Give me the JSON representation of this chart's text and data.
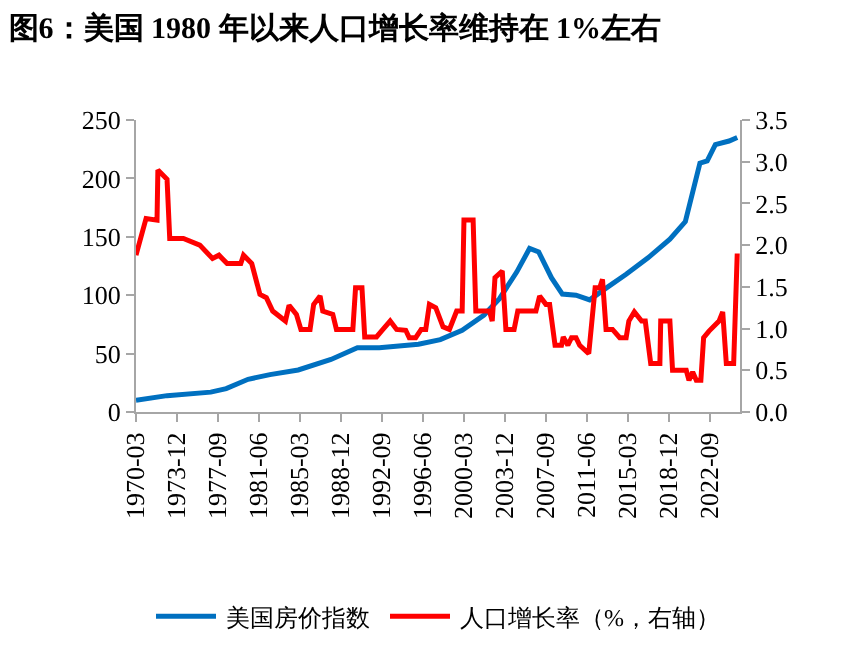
{
  "chart_data": {
    "type": "line",
    "title": "图6：美国 1980 年以来人口增长率维持在 1%左右",
    "xlim": [
      "1970-03",
      "2025-06"
    ],
    "xticks": [
      "1970-03",
      "1973-12",
      "1977-09",
      "1981-06",
      "1985-03",
      "1988-12",
      "1992-09",
      "1996-06",
      "2000-03",
      "2003-12",
      "2007-09",
      "2011-06",
      "2015-03",
      "2018-12",
      "2022-09"
    ],
    "ylim": [
      0,
      250
    ],
    "yticks": [
      0,
      50,
      100,
      150,
      200,
      250
    ],
    "y2lim": [
      0,
      3.5
    ],
    "y2ticks": [
      {
        "value": 0,
        "label": "0.0"
      },
      {
        "value": 0.5,
        "label": "0.5"
      },
      {
        "value": 1,
        "label": "1.0"
      },
      {
        "value": 1.5,
        "label": "1.5"
      },
      {
        "value": 2,
        "label": "2.0"
      },
      {
        "value": 2.5,
        "label": "2.5"
      },
      {
        "value": 3,
        "label": "3.0"
      },
      {
        "value": 3.5,
        "label": "3.5"
      }
    ],
    "legend": "bottom",
    "series": [
      {
        "name": "美国房价指数",
        "color": "#0070c0",
        "x": [
          "1970-03",
          "1973-01",
          "1977-01",
          "1978-06",
          "1980-06",
          "1982-06",
          "1985-01",
          "1988-01",
          "1990-06",
          "1992-06",
          "1996-01",
          "1998-01",
          "2000-01",
          "2002-01",
          "2003-06",
          "2005-01",
          "2006-03",
          "2007-01",
          "2008-03",
          "2009-03",
          "2010-06",
          "2011-09",
          "2013-01",
          "2015-01",
          "2017-01",
          "2019-01",
          "2020-06",
          "2021-10",
          "2022-06",
          "2023-03",
          "2024-06",
          "2025-03"
        ],
        "values": [
          10,
          14,
          17,
          20,
          28,
          32,
          36,
          45,
          55,
          55,
          58,
          62,
          70,
          83,
          97,
          120,
          140,
          137,
          115,
          101,
          100,
          96,
          105,
          118,
          132,
          148,
          163,
          213,
          215,
          229,
          232,
          235
        ]
      },
      {
        "name": "人口增长率（%，右轴）",
        "color": "#ff0000",
        "axis": "y2",
        "x": [
          "1970-03",
          "1971-02",
          "1972-02",
          "1972-03",
          "1973-01",
          "1973-04",
          "1974-07",
          "1976-01",
          "1977-03",
          "1977-10",
          "1978-07",
          "1979-10",
          "1980-01",
          "1980-10",
          "1981-07",
          "1982-02",
          "1982-09",
          "1983-11",
          "1984-03",
          "1984-11",
          "1985-04",
          "1986-02",
          "1986-06",
          "1987-01",
          "1987-04",
          "1988-03",
          "1988-07",
          "1990-01",
          "1990-04",
          "1990-11",
          "1991-02",
          "1992-03",
          "1992-10",
          "1993-06",
          "1994-01",
          "1994-11",
          "1995-03",
          "1995-10",
          "1996-04",
          "1996-09",
          "1997-01",
          "1997-08",
          "1998-04",
          "1998-11",
          "1999-07",
          "2000-01",
          "2000-03",
          "2001-01",
          "2001-04",
          "2002-07",
          "2002-10",
          "2003-01",
          "2003-09",
          "2004-01",
          "2004-10",
          "2005-02",
          "2006-10",
          "2007-02",
          "2007-09",
          "2008-01",
          "2008-07",
          "2009-02",
          "2009-04",
          "2009-09",
          "2010-01",
          "2010-06",
          "2010-10",
          "2011-08",
          "2012-03",
          "2012-08",
          "2012-11",
          "2013-03",
          "2013-10",
          "2014-06",
          "2015-01",
          "2015-04",
          "2015-10",
          "2016-06",
          "2016-10",
          "2017-04",
          "2018-02",
          "2018-03",
          "2019-01",
          "2019-04",
          "2020-07",
          "2020-10",
          "2021-02",
          "2021-06",
          "2021-11",
          "2022-02",
          "2022-08",
          "2023-07",
          "2023-11",
          "2024-03",
          "2024-11",
          "2025-03"
        ],
        "values": [
          1.88,
          2.32,
          2.3,
          2.9,
          2.79,
          2.08,
          2.08,
          2.0,
          1.84,
          1.88,
          1.78,
          1.78,
          1.88,
          1.78,
          1.41,
          1.37,
          1.21,
          1.09,
          1.28,
          1.17,
          0.99,
          0.99,
          1.29,
          1.39,
          1.21,
          1.17,
          0.99,
          0.99,
          1.49,
          1.49,
          0.9,
          0.9,
          0.99,
          1.09,
          0.99,
          0.98,
          0.89,
          0.89,
          0.99,
          0.99,
          1.29,
          1.25,
          1.02,
          0.99,
          1.21,
          1.21,
          2.3,
          2.3,
          1.21,
          1.21,
          1.09,
          1.61,
          1.69,
          0.99,
          0.99,
          1.21,
          1.21,
          1.39,
          1.29,
          1.29,
          0.8,
          0.8,
          0.9,
          0.8,
          0.89,
          0.89,
          0.8,
          0.7,
          1.49,
          1.49,
          1.59,
          0.99,
          0.99,
          0.89,
          0.89,
          1.09,
          1.2,
          1.09,
          1.09,
          0.58,
          0.58,
          1.09,
          1.09,
          0.5,
          0.5,
          0.38,
          0.48,
          0.38,
          0.38,
          0.89,
          0.97,
          1.09,
          1.2,
          0.58,
          0.58,
          1.9
        ]
      }
    ]
  }
}
